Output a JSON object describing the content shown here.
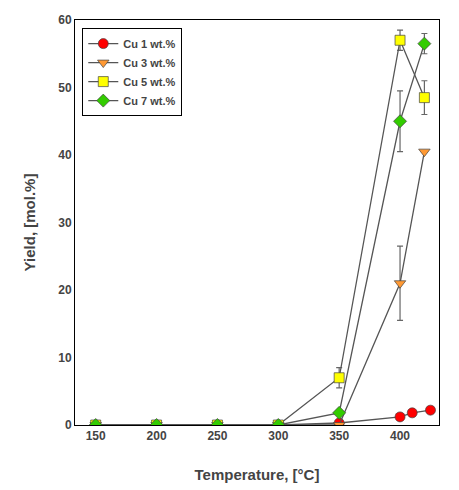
{
  "chart_data": {
    "type": "line",
    "xlabel": "Temperature, [°C]",
    "ylabel": "Yield, [mol.%]",
    "xlim": [
      133,
      432
    ],
    "ylim": [
      0,
      60
    ],
    "xticks": [
      150,
      200,
      250,
      300,
      350,
      400
    ],
    "yticks": [
      0,
      10,
      20,
      30,
      40,
      50,
      60
    ],
    "grid": false,
    "legend": "upper left",
    "series": [
      {
        "name": "Cu 1 wt.%",
        "color": "#ff0000",
        "marker": "circle",
        "x": [
          150,
          200,
          250,
          300,
          350,
          400,
          410,
          425
        ],
        "values": [
          0,
          0,
          0,
          0,
          0.3,
          1.2,
          1.8,
          2.2
        ],
        "yerr": [
          0,
          0,
          0,
          0,
          0,
          0,
          0,
          0
        ]
      },
      {
        "name": "Cu 3 wt.%",
        "color": "#ff9933",
        "marker": "triangle-down",
        "x": [
          150,
          200,
          250,
          300,
          350,
          400,
          420
        ],
        "values": [
          0,
          0,
          0,
          0,
          0,
          21.0,
          40.5
        ],
        "yerr": [
          0,
          0,
          0,
          0,
          0,
          5.5,
          0
        ]
      },
      {
        "name": "Cu 5 wt.%",
        "color": "#ffff00",
        "marker": "square",
        "x": [
          150,
          200,
          250,
          300,
          350,
          400,
          420
        ],
        "values": [
          0,
          0,
          0,
          0,
          7.0,
          57.0,
          48.5
        ],
        "yerr": [
          0,
          0,
          0,
          0,
          1.5,
          1.5,
          2.5
        ]
      },
      {
        "name": "Cu 7 wt.%",
        "color": "#33cc00",
        "marker": "diamond",
        "x": [
          150,
          200,
          250,
          300,
          350,
          400,
          420
        ],
        "values": [
          0,
          0,
          0,
          0,
          1.8,
          45.0,
          56.5
        ],
        "yerr": [
          0,
          0,
          0,
          0,
          0,
          4.5,
          1.5
        ]
      }
    ]
  }
}
